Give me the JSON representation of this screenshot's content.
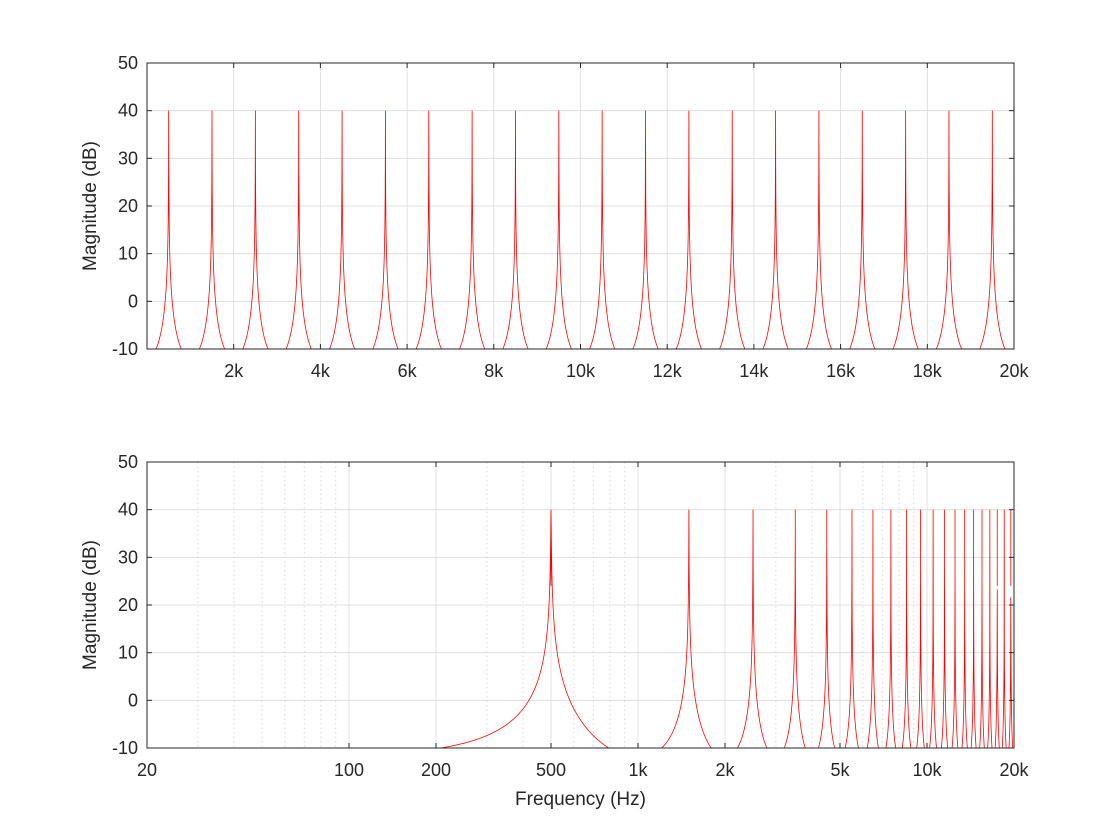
{
  "figure": {
    "background": "#ffffff",
    "axes_color": "#262626",
    "grid_color": "#d9d9d9",
    "curve_color": "#ff0000"
  },
  "chart_data": [
    {
      "type": "line",
      "id": "linear",
      "xscale": "linear",
      "xlim": [
        0,
        20000
      ],
      "ylim": [
        -10,
        50
      ],
      "xticks": [
        2000,
        4000,
        6000,
        8000,
        10000,
        12000,
        14000,
        16000,
        18000,
        20000
      ],
      "xtick_labels": [
        "2k",
        "4k",
        "6k",
        "8k",
        "10k",
        "12k",
        "14k",
        "16k",
        "18k",
        "20k"
      ],
      "yticks": [
        -10,
        0,
        10,
        20,
        30,
        40,
        50
      ],
      "ytick_labels": [
        "-10",
        "0",
        "10",
        "20",
        "30",
        "40",
        "50"
      ],
      "xlabel": "",
      "ylabel": "Magnitude (dB)",
      "grid": true,
      "minor_grid": false,
      "series": [
        {
          "peaks_hz": [
            500,
            1500,
            2500,
            3500,
            4500,
            5500,
            6500,
            7500,
            8500,
            9500,
            10500,
            11500,
            12500,
            13500,
            14500,
            15500,
            16500,
            17500,
            18500,
            19500
          ],
          "peak_db": 40,
          "trough_hz": [
            0,
            1000,
            2000,
            3000,
            4000,
            5000,
            6000,
            7000,
            8000,
            9000,
            10000,
            11000,
            12000,
            13000,
            14000,
            15000,
            16000,
            17000,
            18000,
            19000,
            20000
          ],
          "trough_db": -6
        }
      ]
    },
    {
      "type": "line",
      "id": "log",
      "xscale": "log",
      "xlim": [
        20,
        20000
      ],
      "ylim": [
        -10,
        50
      ],
      "xticks": [
        20,
        100,
        200,
        500,
        1000,
        2000,
        5000,
        10000,
        20000
      ],
      "xtick_labels": [
        "20",
        "100",
        "200",
        "500",
        "1k",
        "2k",
        "5k",
        "10k",
        "20k"
      ],
      "yticks": [
        -10,
        0,
        10,
        20,
        30,
        40,
        50
      ],
      "ytick_labels": [
        "-10",
        "0",
        "10",
        "20",
        "30",
        "40",
        "50"
      ],
      "xlabel": "Frequency (Hz)",
      "ylabel": "Magnitude (dB)",
      "grid": true,
      "minor_grid": true,
      "series": [
        {
          "peaks_hz": [
            500,
            1500,
            2500,
            3500,
            4500,
            5500,
            6500,
            7500,
            8500,
            9500,
            10500,
            11500,
            12500,
            13500,
            14500,
            15500,
            16500,
            17500,
            18500,
            19500
          ],
          "peak_db": 40,
          "trough_hz": [
            0,
            1000,
            2000,
            3000,
            4000,
            5000,
            6000,
            7000,
            8000,
            9000,
            10000,
            11000,
            12000,
            13000,
            14000,
            15000,
            16000,
            17000,
            18000,
            19000,
            20000
          ],
          "trough_db": -6
        }
      ]
    }
  ]
}
